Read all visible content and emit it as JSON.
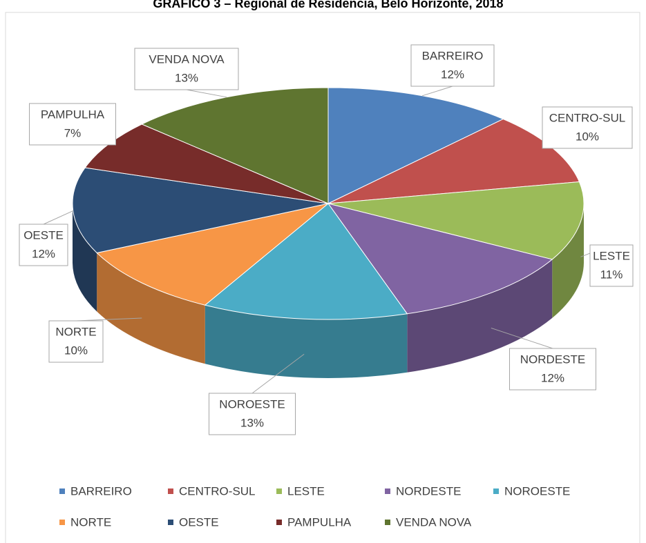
{
  "chart_data": {
    "type": "pie3d",
    "title": "GRÁFICO 3 – Regional de Residência, Belo Horizonte, 2018",
    "categories": [
      "BARREIRO",
      "CENTRO-SUL",
      "LESTE",
      "NORDESTE",
      "NOROESTE",
      "NORTE",
      "OESTE",
      "PAMPULHA",
      "VENDA NOVA"
    ],
    "values": [
      12,
      10,
      11,
      12,
      13,
      10,
      12,
      7,
      13
    ],
    "value_labels": [
      "12%",
      "10%",
      "11%",
      "12%",
      "13%",
      "10%",
      "12%",
      "7%",
      "13%"
    ],
    "colors": [
      "#4f81bd",
      "#c0504d",
      "#9bbb59",
      "#8064a2",
      "#4bacc6",
      "#f79646",
      "#2c4d75",
      "#772c2a",
      "#5f7530"
    ],
    "legend": "bottom"
  }
}
